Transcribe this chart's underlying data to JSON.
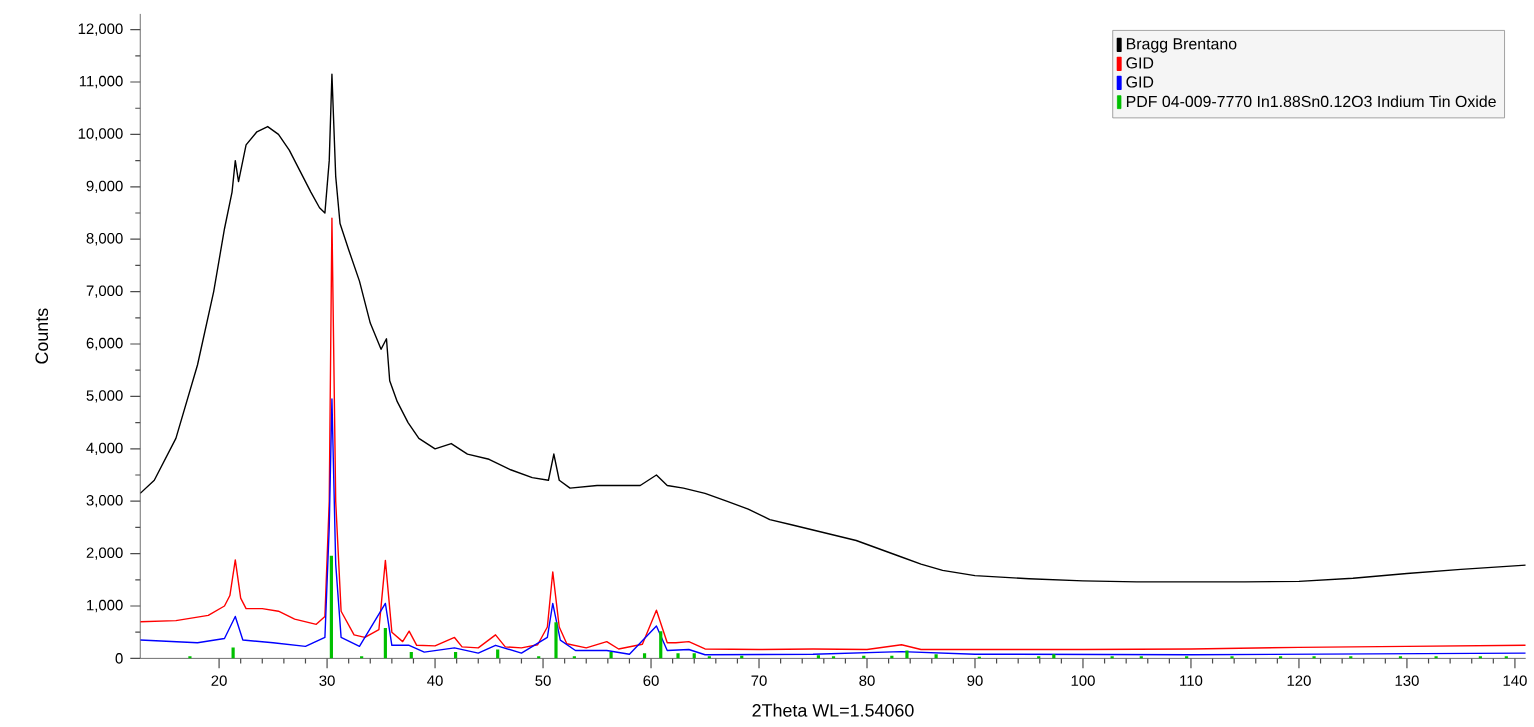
{
  "chart_data": {
    "type": "line",
    "xlabel": "2Theta WL=1.54060",
    "ylabel": "Counts",
    "xlim": [
      12.7,
      141
    ],
    "ylim": [
      0,
      12300
    ],
    "xticks": [
      20,
      30,
      40,
      50,
      60,
      70,
      80,
      90,
      100,
      110,
      120,
      130,
      140
    ],
    "yticks": [
      0,
      {
        "value": 1000,
        "label": "1,000"
      },
      {
        "value": 2000,
        "label": "2,000"
      },
      {
        "value": 3000,
        "label": "3,000"
      },
      {
        "value": 4000,
        "label": "4,000"
      },
      {
        "value": 5000,
        "label": "5,000"
      },
      {
        "value": 6000,
        "label": "6,000"
      },
      {
        "value": 7000,
        "label": "7,000"
      },
      {
        "value": 8000,
        "label": "8,000"
      },
      {
        "value": 9000,
        "label": "9,000"
      },
      {
        "value": 10000,
        "label": "10,000"
      },
      {
        "value": 11000,
        "label": "11,000"
      },
      {
        "value": 12000,
        "label": "12,000"
      }
    ],
    "legend": "top right",
    "marker": "none",
    "line_style": "solid",
    "series": [
      {
        "name": "Bragg Brentano",
        "color": "#000000",
        "x": [
          12.7,
          14,
          16,
          18,
          19.5,
          20.5,
          21.2,
          21.5,
          21.8,
          22.5,
          23.5,
          24.5,
          25.5,
          26.5,
          27.5,
          28.5,
          29.3,
          29.8,
          30.2,
          30.45,
          30.8,
          31.2,
          32,
          33,
          34,
          35,
          35.5,
          35.8,
          36.5,
          37.5,
          38.5,
          40,
          41.5,
          43,
          45,
          47,
          49,
          50.5,
          51,
          51.5,
          52.5,
          55,
          57,
          59,
          60.5,
          61.5,
          63,
          65,
          67,
          69,
          71,
          73,
          75,
          77,
          79,
          81,
          83,
          85,
          87,
          90,
          95,
          100,
          105,
          110,
          115,
          120,
          125,
          130,
          135,
          141
        ],
        "values": [
          3150,
          3400,
          4200,
          5600,
          7000,
          8200,
          8900,
          9500,
          9100,
          9800,
          10050,
          10150,
          10000,
          9700,
          9300,
          8900,
          8600,
          8500,
          9500,
          11150,
          9200,
          8300,
          7800,
          7200,
          6400,
          5900,
          6100,
          5300,
          4900,
          4500,
          4200,
          4000,
          4100,
          3900,
          3800,
          3600,
          3450,
          3400,
          3900,
          3400,
          3250,
          3300,
          3300,
          3300,
          3500,
          3300,
          3250,
          3150,
          3000,
          2850,
          2650,
          2550,
          2450,
          2350,
          2250,
          2100,
          1950,
          1800,
          1680,
          1580,
          1520,
          1480,
          1460,
          1460,
          1460,
          1470,
          1530,
          1620,
          1700,
          1780
        ]
      },
      {
        "name": "GID",
        "color": "#ff0000",
        "x": [
          12.7,
          16,
          19,
          20.5,
          21,
          21.5,
          22,
          22.5,
          24,
          25.5,
          27,
          29,
          29.8,
          30.2,
          30.45,
          30.8,
          31.3,
          32.5,
          33.5,
          34.8,
          35.4,
          36,
          37,
          37.6,
          38.3,
          40,
          41.8,
          42.5,
          44,
          45.6,
          46.5,
          48,
          49.5,
          50.4,
          50.9,
          51.5,
          52.2,
          54,
          55.9,
          57,
          59.2,
          60.5,
          61.5,
          62.3,
          63.5,
          65,
          70,
          75,
          80,
          83.2,
          85,
          90,
          100,
          110,
          120,
          130,
          141
        ],
        "values": [
          700,
          720,
          820,
          1000,
          1200,
          1880,
          1150,
          950,
          950,
          900,
          750,
          650,
          800,
          3000,
          8400,
          3000,
          900,
          450,
          400,
          550,
          1870,
          500,
          320,
          520,
          250,
          240,
          400,
          220,
          200,
          450,
          220,
          200,
          260,
          600,
          1650,
          600,
          280,
          200,
          320,
          180,
          270,
          920,
          300,
          300,
          320,
          180,
          170,
          180,
          170,
          260,
          170,
          170,
          170,
          180,
          210,
          230,
          250
        ]
      },
      {
        "name": "GID",
        "color": "#0000ff",
        "x": [
          12.7,
          18,
          20.5,
          21.5,
          22.2,
          25,
          28,
          29.8,
          30.2,
          30.45,
          30.8,
          31.3,
          33,
          35.4,
          36,
          37.6,
          39,
          41.8,
          44,
          45.6,
          48,
          50.4,
          50.9,
          51.6,
          53,
          55.9,
          58,
          60.5,
          61.5,
          63.5,
          65,
          75,
          83.2,
          90,
          110,
          141
        ],
        "values": [
          350,
          300,
          380,
          800,
          350,
          300,
          230,
          400,
          2500,
          4950,
          1800,
          400,
          230,
          1050,
          250,
          250,
          120,
          200,
          100,
          250,
          100,
          400,
          1050,
          350,
          150,
          150,
          80,
          620,
          150,
          170,
          70,
          80,
          130,
          80,
          70,
          100
        ]
      },
      {
        "name": "PDF 04-009-7770 In1.88Sn0.12O3 Indium Tin Oxide",
        "type": "bar",
        "color": "#00c000",
        "x": [
          17.3,
          21.3,
          30.4,
          33.2,
          35.4,
          37.8,
          41.9,
          45.8,
          49.6,
          51.2,
          52.9,
          56.3,
          59.4,
          60.9,
          62.5,
          64,
          65.4,
          68.4,
          75.5,
          76.9,
          79.7,
          82.3,
          83.7,
          86.4,
          90.4,
          95.9,
          97.3,
          102.7,
          105.4,
          109.6,
          113.8,
          118.3,
          121.4,
          124.8,
          129.4,
          132.7,
          136.8,
          139.2
        ],
        "values": [
          40,
          210,
          1960,
          40,
          580,
          120,
          120,
          170,
          40,
          690,
          40,
          120,
          100,
          520,
          100,
          100,
          40,
          50,
          60,
          40,
          50,
          50,
          150,
          80,
          30,
          40,
          80,
          40,
          40,
          40,
          40,
          40,
          40,
          40,
          40,
          40,
          40,
          40
        ]
      }
    ]
  }
}
